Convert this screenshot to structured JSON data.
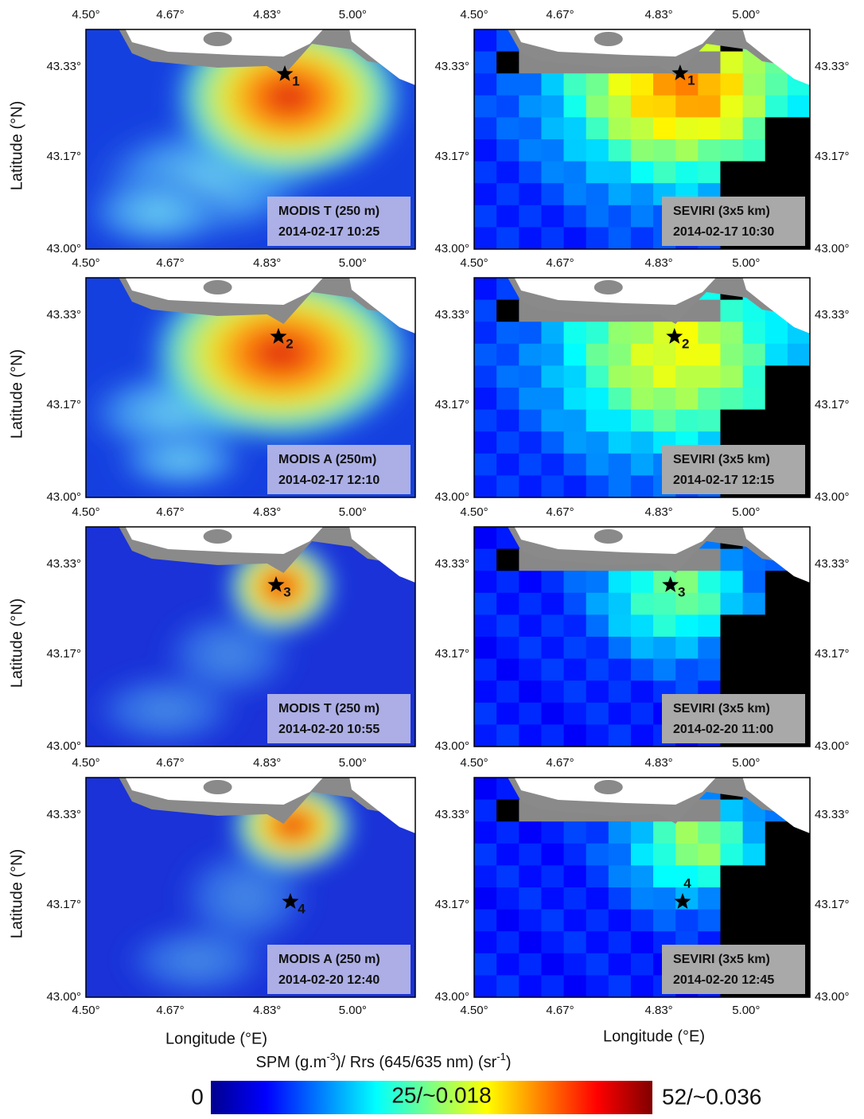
{
  "axis_labels": {
    "latitude": "Latitude (°N)",
    "longitude": "Longitude (°E)"
  },
  "lon_ticks": [
    "4.50°",
    "4.67°",
    "4.83°",
    "5.00°"
  ],
  "lat_ticks": [
    "43.33°",
    "43.17°",
    "43.00°"
  ],
  "panels": [
    {
      "sensor": "MODIS T (250 m)",
      "datetime": "2014-02-17 10:25",
      "station": "1"
    },
    {
      "sensor": "SEVIRI (3x5 km)",
      "datetime": "2014-02-17 10:30",
      "station": "1"
    },
    {
      "sensor": "MODIS A (250m)",
      "datetime": "2014-02-17 12:10",
      "station": "2"
    },
    {
      "sensor": "SEVIRI (3x5 km)",
      "datetime": "2014-02-17  12:15",
      "station": "2"
    },
    {
      "sensor": "MODIS T (250 m)",
      "datetime": "2014-02-20 10:55",
      "station": "3"
    },
    {
      "sensor": "SEVIRI (3x5 km)",
      "datetime": "2014-02-20 11:00",
      "station": "3"
    },
    {
      "sensor": "MODIS A (250 m)",
      "datetime": "2014-02-20 12:40",
      "station": "4"
    },
    {
      "sensor": "SEVIRI (3x5 km)",
      "datetime": "2014-02-20 12:45",
      "station": "4"
    }
  ],
  "colorbar": {
    "title_parts": [
      "SPM (g.m",
      "-3",
      ")/ Rrs (645/635 nm) (sr",
      "-1",
      ")"
    ],
    "labels": [
      "0",
      "25/~0.018",
      "52/~0.036"
    ]
  }
}
